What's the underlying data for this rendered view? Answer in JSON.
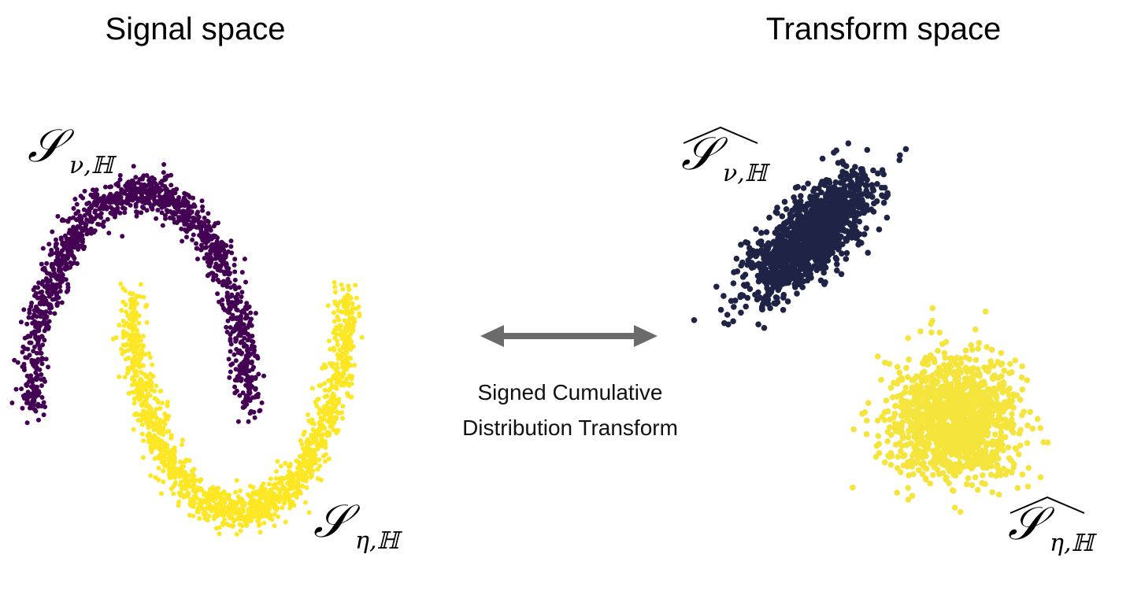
{
  "header": {
    "left_title": "Signal space",
    "right_title": "Transform space"
  },
  "labels": {
    "signal_nu": {
      "symbol": "𝒮",
      "subscript": "ν,ℍ"
    },
    "signal_eta": {
      "symbol": "𝒮",
      "subscript": "η,ℍ"
    },
    "transform_nu": {
      "symbol": "𝒮",
      "subscript": "ν,ℍ"
    },
    "transform_eta": {
      "symbol": "𝒮",
      "subscript": "η,ℍ"
    }
  },
  "arrow_caption": {
    "line1": "Signed Cumulative",
    "line2": "Distribution Transform"
  }
}
